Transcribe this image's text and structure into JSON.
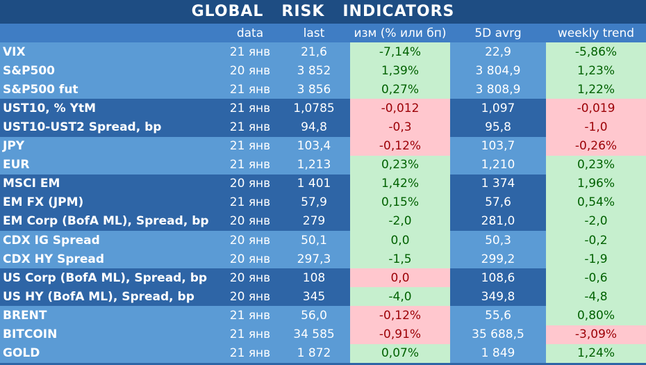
{
  "title": "GLOBAL   RISK   INDICATORS",
  "headers": [
    "",
    "data",
    "last",
    "изм (% или бп)",
    "5D avrg",
    "weekly trend"
  ],
  "rows": [
    {
      "name": "VIX",
      "date": "21 янв",
      "last": "21,6",
      "chg": "-7,14%",
      "chg_s": "pos",
      "avg": "22,9",
      "trend": "-5,86%",
      "trend_s": "pos",
      "group": 1
    },
    {
      "name": "S&P500",
      "date": "20 янв",
      "last": "3 852",
      "chg": "1,39%",
      "chg_s": "pos",
      "avg": "3 804,9",
      "trend": "1,23%",
      "trend_s": "pos",
      "group": 1
    },
    {
      "name": "S&P500 fut",
      "date": "21 янв",
      "last": "3 856",
      "chg": "0,27%",
      "chg_s": "pos",
      "avg": "3 808,9",
      "trend": "1,22%",
      "trend_s": "pos",
      "group": 1
    },
    {
      "name": "UST10, % YtM",
      "date": "21 янв",
      "last": "1,0785",
      "chg": "-0,012",
      "chg_s": "neg",
      "avg": "1,097",
      "trend": "-0,019",
      "trend_s": "neg",
      "group": 2
    },
    {
      "name": "UST10-UST2 Spread, bp",
      "date": "21 янв",
      "last": "94,8",
      "chg": "-0,3",
      "chg_s": "neg",
      "avg": "95,8",
      "trend": "-1,0",
      "trend_s": "neg",
      "group": 2
    },
    {
      "name": "JPY",
      "date": "21 янв",
      "last": "103,4",
      "chg": "-0,12%",
      "chg_s": "neg",
      "avg": "103,7",
      "trend": "-0,26%",
      "trend_s": "neg",
      "group": 1
    },
    {
      "name": "EUR",
      "date": "21 янв",
      "last": "1,213",
      "chg": "0,23%",
      "chg_s": "pos",
      "avg": "1,210",
      "trend": "0,23%",
      "trend_s": "pos",
      "group": 1
    },
    {
      "name": "MSCI EM",
      "date": "20 янв",
      "last": "1 401",
      "chg": "1,42%",
      "chg_s": "pos",
      "avg": "1 374",
      "trend": "1,96%",
      "trend_s": "pos",
      "group": 2
    },
    {
      "name": "EM FX (JPM)",
      "date": "21 янв",
      "last": "57,9",
      "chg": "0,15%",
      "chg_s": "pos",
      "avg": "57,6",
      "trend": "0,54%",
      "trend_s": "pos",
      "group": 2
    },
    {
      "name": "EM Corp (BofA ML), Spread, bp",
      "date": "20 янв",
      "last": "279",
      "chg": "-2,0",
      "chg_s": "pos",
      "avg": "281,0",
      "trend": "-2,0",
      "trend_s": "pos",
      "group": 2
    },
    {
      "name": "CDX IG Spread",
      "date": "20 янв",
      "last": "50,1",
      "chg": "0,0",
      "chg_s": "pos",
      "avg": "50,3",
      "trend": "-0,2",
      "trend_s": "pos",
      "group": 1
    },
    {
      "name": "CDX HY Spread",
      "date": "20 янв",
      "last": "297,3",
      "chg": "-1,5",
      "chg_s": "pos",
      "avg": "299,2",
      "trend": "-1,9",
      "trend_s": "pos",
      "group": 1
    },
    {
      "name": "US Corp (BofA ML), Spread, bp",
      "date": "20 янв",
      "last": "108",
      "chg": "0,0",
      "chg_s": "neg",
      "avg": "108,6",
      "trend": "-0,6",
      "trend_s": "pos",
      "group": 2
    },
    {
      "name": "US HY (BofA ML), Spread, bp",
      "date": "20 янв",
      "last": "345",
      "chg": "-4,0",
      "chg_s": "pos",
      "avg": "349,8",
      "trend": "-4,8",
      "trend_s": "pos",
      "group": 2
    },
    {
      "name": "BRENT",
      "date": "21 янв",
      "last": "56,0",
      "chg": "-0,12%",
      "chg_s": "neg",
      "avg": "55,6",
      "trend": "0,80%",
      "trend_s": "pos",
      "group": 1
    },
    {
      "name": "BITCOIN",
      "date": "21 янв",
      "last": "34 585",
      "chg": "-0,91%",
      "chg_s": "neg",
      "avg": "35 688,5",
      "trend": "-3,09%",
      "trend_s": "neg",
      "group": 1
    },
    {
      "name": "GOLD",
      "date": "21 янв",
      "last": "1 872",
      "chg": "0,07%",
      "chg_s": "pos",
      "avg": "1 849",
      "trend": "1,24%",
      "trend_s": "pos",
      "group": 1
    }
  ],
  "colors": {
    "positive_bg": "#c6efce",
    "positive_text": "#006100",
    "negative_bg": "#ffc7ce",
    "negative_text": "#9c0006"
  }
}
